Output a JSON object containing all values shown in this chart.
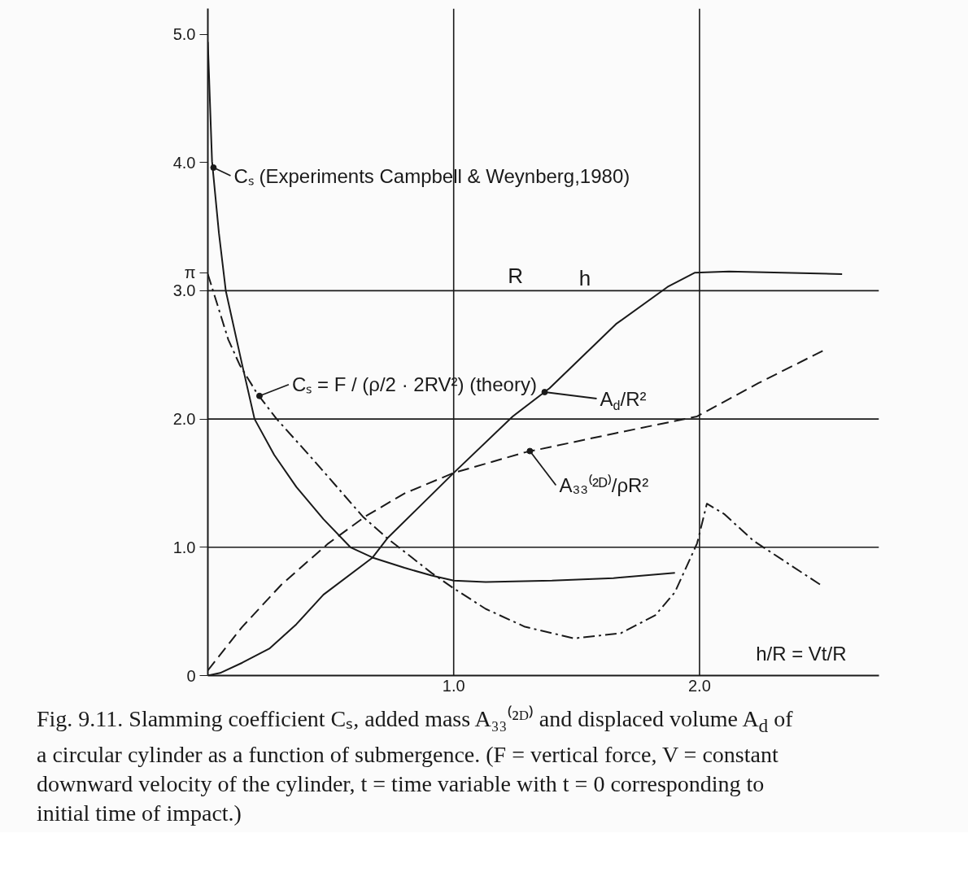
{
  "chart_data": {
    "type": "line",
    "xlabel": "h/R = Vt/R",
    "xlim": [
      0,
      2.73
    ],
    "ylim": [
      0,
      5.2
    ],
    "xticks": [
      {
        "value": 1.0,
        "label": "1.0"
      },
      {
        "value": 2.0,
        "label": "2.0"
      }
    ],
    "yticks": [
      {
        "value": 0,
        "label": "0"
      },
      {
        "value": 1.0,
        "label": "1.0"
      },
      {
        "value": 2.0,
        "label": "2.0"
      },
      {
        "value": 3.0,
        "label": "3.0"
      },
      {
        "value": 3.14159,
        "label": "π"
      },
      {
        "value": 4.0,
        "label": "4.0"
      },
      {
        "value": 5.0,
        "label": "5.0"
      }
    ],
    "series": [
      {
        "color": "#1a1a1a",
        "line_style": "solid",
        "x": [
          0,
          0.017,
          0.045,
          0.073,
          0.14,
          0.19,
          0.27,
          0.36,
          0.47,
          0.58,
          0.67,
          0.8,
          0.91,
          1.0,
          1.13,
          1.4,
          1.65,
          1.9
        ],
        "values": [
          4.94,
          4.01,
          3.45,
          3.0,
          2.42,
          2.0,
          1.72,
          1.47,
          1.22,
          1.0,
          0.92,
          0.84,
          0.78,
          0.74,
          0.73,
          0.74,
          0.76,
          0.8
        ]
      },
      {
        "color": "#1a1a1a",
        "line_style": "dashdot",
        "x": [
          0,
          0.083,
          0.13,
          0.2,
          0.28,
          0.43,
          0.63,
          0.73,
          0.91,
          1.0,
          1.13,
          1.29,
          1.49,
          1.68,
          1.82,
          1.9,
          1.99,
          2.03,
          2.1,
          2.22,
          2.49
        ],
        "values": [
          3.13,
          2.62,
          2.42,
          2.2,
          2.0,
          1.68,
          1.24,
          1.07,
          0.8,
          0.68,
          0.52,
          0.38,
          0.29,
          0.33,
          0.47,
          0.65,
          1.03,
          1.34,
          1.26,
          1.05,
          0.71
        ]
      },
      {
        "color": "#1a1a1a",
        "line_style": "solid",
        "x": [
          0,
          0.05,
          0.14,
          0.25,
          0.36,
          0.47,
          0.67,
          0.73,
          1.0,
          1.24,
          1.39,
          1.66,
          1.87,
          1.98,
          2.12,
          2.58
        ],
        "values": [
          0,
          0.02,
          0.1,
          0.21,
          0.4,
          0.63,
          0.92,
          1.07,
          1.58,
          2.02,
          2.24,
          2.74,
          3.03,
          3.14,
          3.15,
          3.13
        ]
      },
      {
        "color": "#1a1a1a",
        "line_style": "dashed",
        "x": [
          0,
          0.14,
          0.3,
          0.49,
          0.64,
          0.8,
          1.0,
          1.29,
          1.66,
          1.99,
          2.24,
          2.51
        ],
        "values": [
          0.04,
          0.38,
          0.71,
          1.03,
          1.24,
          1.42,
          1.58,
          1.74,
          1.89,
          2.02,
          2.28,
          2.54
        ]
      }
    ],
    "ref_lines": [
      {
        "axis": "y",
        "value": 1.0,
        "label": null
      },
      {
        "axis": "y",
        "value": 2.0,
        "label": null
      },
      {
        "axis": "y",
        "value": 3.0,
        "label": null
      },
      {
        "axis": "x",
        "value": 1.0,
        "label": null
      },
      {
        "axis": "x",
        "value": 2.0,
        "label": null
      }
    ],
    "annotations": [
      {
        "text": "Cₛ (Experiments  Campbell & Weynberg,1980)",
        "x": 0.023,
        "y": 3.96
      },
      {
        "text": "Cₛ = F / (ρ/2 · 2RV²) (theory)",
        "x": 0.21,
        "y": 2.18
      },
      {
        "text": "A$_{d}$/R²",
        "x": 1.37,
        "y": 2.21
      },
      {
        "text": "A₃₃⁽²ᴰ⁾/ρR²",
        "x": 1.31,
        "y": 1.75
      },
      "R",
      "h",
      "Fig. 9.11. Slamming coefficient Cₛ, added mass A₃₃⁽²ᴰ⁾ and displaced volume A$_{d}$ of a circular cylinder as a function of submergence. (F = vertical force, V = constant downward velocity of the cylinder, t = time variable with t = 0 corresponding to initial time of impact.)"
    ]
  }
}
